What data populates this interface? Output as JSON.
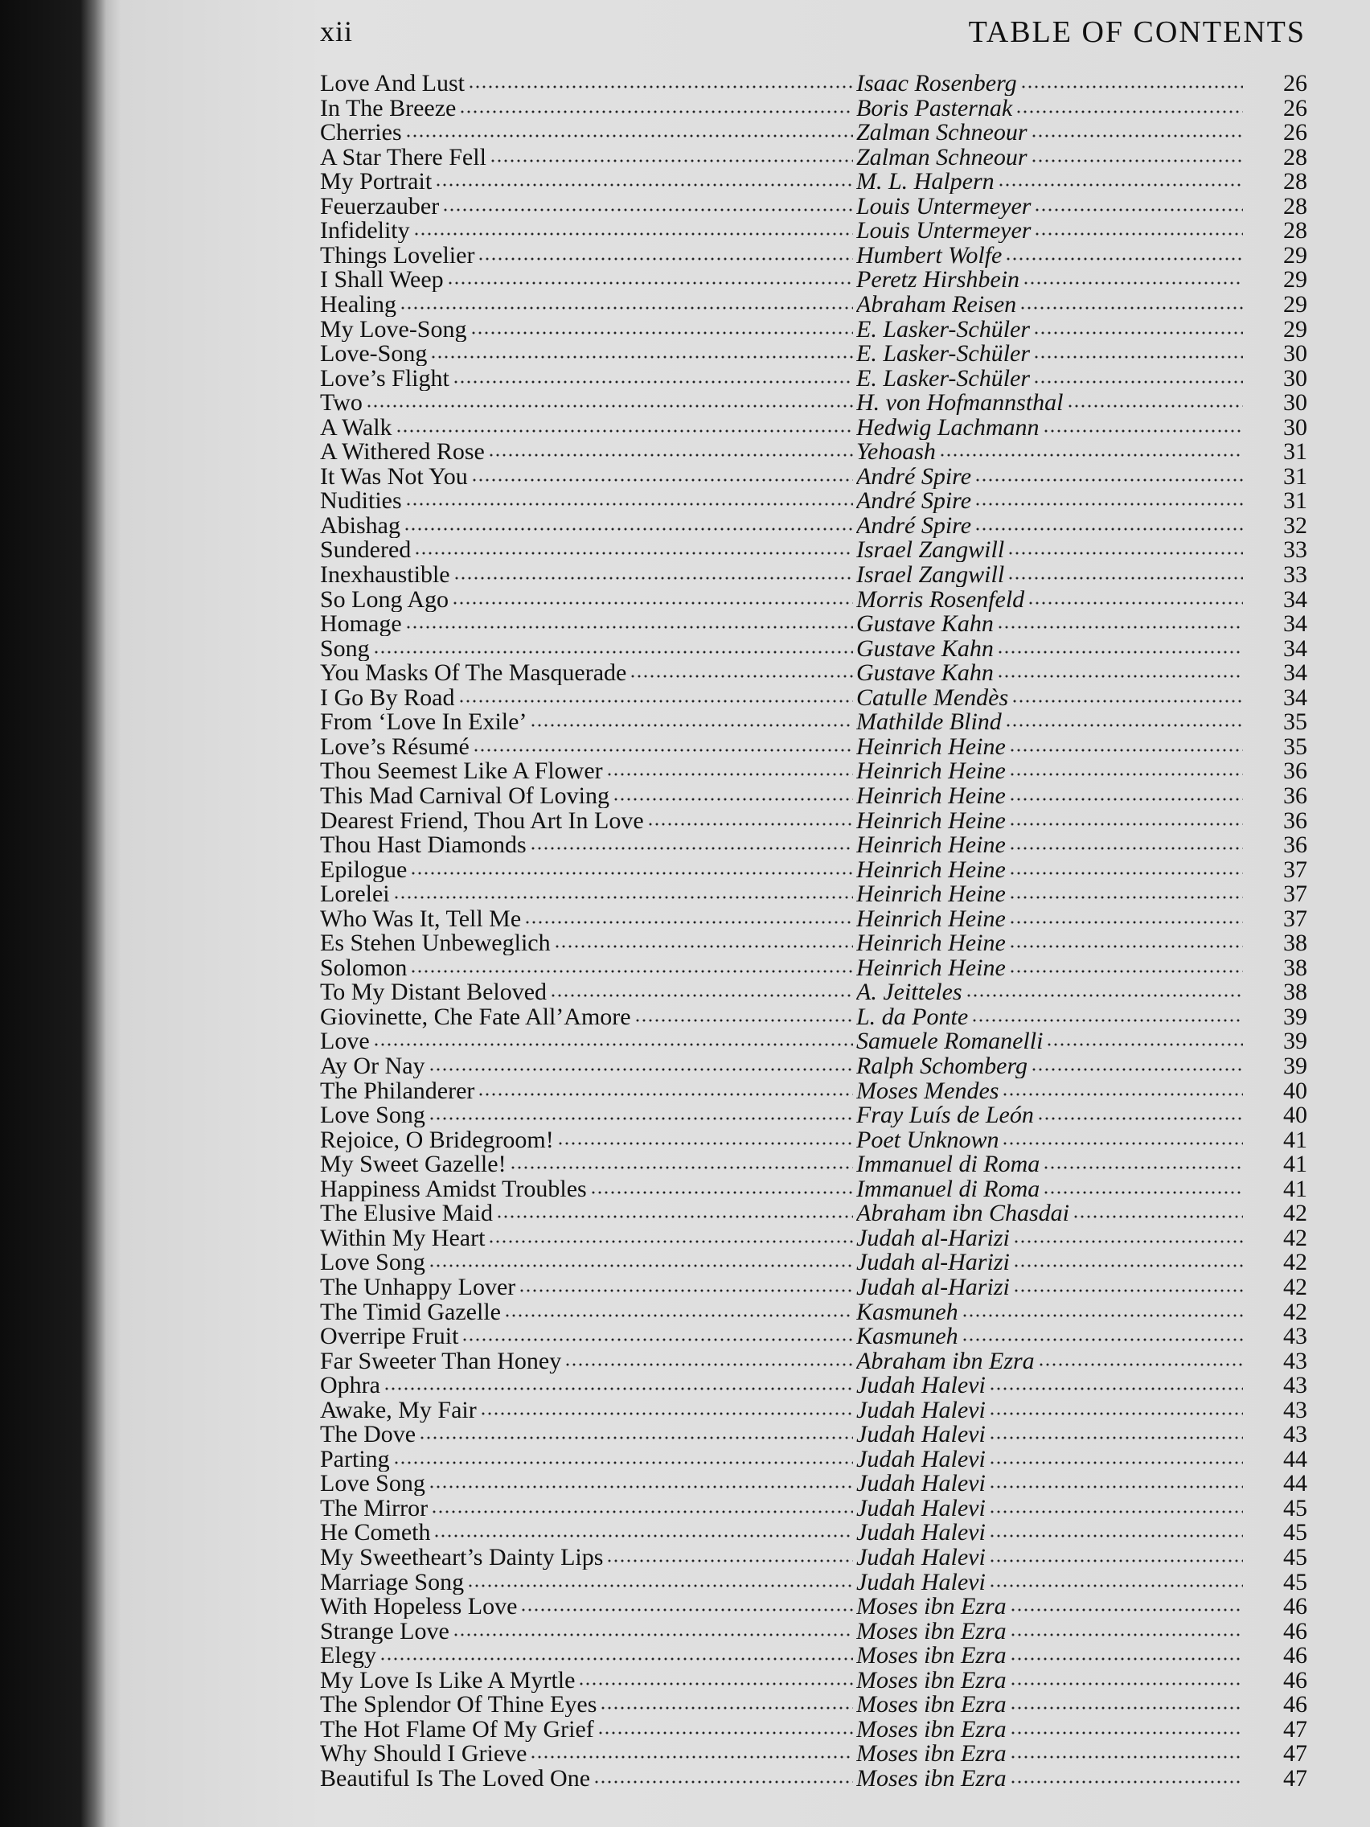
{
  "header": {
    "page_number": "xii",
    "title": "TABLE OF CONTENTS"
  },
  "entries": [
    [
      "Love And Lust",
      "Isaac Rosenberg",
      26
    ],
    [
      "In The Breeze",
      "Boris Pasternak",
      26
    ],
    [
      "Cherries",
      "Zalman Schneour",
      26
    ],
    [
      "A Star There Fell",
      "Zalman Schneour",
      28
    ],
    [
      "My Portrait",
      "M. L. Halpern",
      28
    ],
    [
      "Feuerzauber",
      "Louis Untermeyer",
      28
    ],
    [
      "Infidelity",
      "Louis Untermeyer",
      28
    ],
    [
      "Things Lovelier",
      "Humbert Wolfe",
      29
    ],
    [
      "I Shall Weep",
      "Peretz Hirshbein",
      29
    ],
    [
      "Healing",
      "Abraham Reisen",
      29
    ],
    [
      "My Love-Song",
      "E. Lasker-Schüler",
      29
    ],
    [
      "Love-Song",
      "E. Lasker-Schüler",
      30
    ],
    [
      "Love’s Flight",
      "E. Lasker-Schüler",
      30
    ],
    [
      "Two",
      "H. von Hofmannsthal",
      30
    ],
    [
      "A Walk",
      "Hedwig Lachmann",
      30
    ],
    [
      "A Withered Rose",
      "Yehoash",
      31
    ],
    [
      "It Was Not You",
      "André Spire",
      31
    ],
    [
      "Nudities",
      "André Spire",
      31
    ],
    [
      "Abishag",
      "André Spire",
      32
    ],
    [
      "Sundered",
      "Israel Zangwill",
      33
    ],
    [
      "Inexhaustible",
      "Israel Zangwill",
      33
    ],
    [
      "So Long Ago",
      "Morris Rosenfeld",
      34
    ],
    [
      "Homage",
      "Gustave Kahn",
      34
    ],
    [
      "Song",
      "Gustave Kahn",
      34
    ],
    [
      "You Masks Of The Masquerade",
      "Gustave Kahn",
      34
    ],
    [
      "I Go By Road",
      "Catulle Mendès",
      34
    ],
    [
      "From ‘Love In Exile’",
      "Mathilde Blind",
      35
    ],
    [
      "Love’s Résumé",
      "Heinrich Heine",
      35
    ],
    [
      "Thou Seemest Like A Flower",
      "Heinrich Heine",
      36
    ],
    [
      "This Mad Carnival Of Loving",
      "Heinrich Heine",
      36
    ],
    [
      "Dearest Friend, Thou Art In Love",
      "Heinrich Heine",
      36
    ],
    [
      "Thou Hast Diamonds",
      "Heinrich Heine",
      36
    ],
    [
      "Epilogue",
      "Heinrich Heine",
      37
    ],
    [
      "Lorelei",
      "Heinrich Heine",
      37
    ],
    [
      "Who Was It, Tell Me",
      "Heinrich Heine",
      37
    ],
    [
      "Es Stehen Unbeweglich",
      "Heinrich Heine",
      38
    ],
    [
      "Solomon",
      "Heinrich Heine",
      38
    ],
    [
      "To My Distant Beloved",
      "A. Jeitteles",
      38
    ],
    [
      "Giovinette, Che Fate All’Amore",
      "L. da Ponte",
      39
    ],
    [
      "Love",
      "Samuele Romanelli",
      39
    ],
    [
      "Ay Or Nay",
      "Ralph Schomberg",
      39
    ],
    [
      "The Philanderer",
      "Moses Mendes",
      40
    ],
    [
      "Love Song",
      "Fray Luís de León",
      40
    ],
    [
      "Rejoice, O Bridegroom!",
      "Poet Unknown",
      41
    ],
    [
      "My Sweet Gazelle!",
      "Immanuel di Roma",
      41
    ],
    [
      "Happiness Amidst Troubles",
      "Immanuel di Roma",
      41
    ],
    [
      "The Elusive Maid",
      "Abraham ibn Chasdai",
      42
    ],
    [
      "Within My Heart",
      "Judah al-Harizi",
      42
    ],
    [
      "Love Song",
      "Judah al-Harizi",
      42
    ],
    [
      "The Unhappy Lover",
      "Judah al-Harizi",
      42
    ],
    [
      "The Timid Gazelle",
      "Kasmuneh",
      42
    ],
    [
      "Overripe Fruit",
      "Kasmuneh",
      43
    ],
    [
      "Far Sweeter Than Honey",
      "Abraham ibn Ezra",
      43
    ],
    [
      "Ophra",
      "Judah Halevi",
      43
    ],
    [
      "Awake, My Fair",
      "Judah Halevi",
      43
    ],
    [
      "The Dove",
      "Judah Halevi",
      43
    ],
    [
      "Parting",
      "Judah Halevi",
      44
    ],
    [
      "Love Song",
      "Judah Halevi",
      44
    ],
    [
      "The Mirror",
      "Judah Halevi",
      45
    ],
    [
      "He Cometh",
      "Judah Halevi",
      45
    ],
    [
      "My Sweetheart’s Dainty Lips",
      "Judah Halevi",
      45
    ],
    [
      "Marriage Song",
      "Judah Halevi",
      45
    ],
    [
      "With Hopeless Love",
      "Moses ibn Ezra",
      46
    ],
    [
      "Strange Love",
      "Moses ibn Ezra",
      46
    ],
    [
      "Elegy",
      "Moses ibn Ezra",
      46
    ],
    [
      "My Love Is Like A Myrtle",
      "Moses ibn Ezra",
      46
    ],
    [
      "The Splendor Of Thine Eyes",
      "Moses ibn Ezra",
      46
    ],
    [
      "The Hot Flame Of My Grief",
      "Moses ibn Ezra",
      47
    ],
    [
      "Why Should I Grieve",
      "Moses ibn Ezra",
      47
    ],
    [
      "Beautiful Is The Loved One",
      "Moses ibn Ezra",
      47
    ]
  ]
}
